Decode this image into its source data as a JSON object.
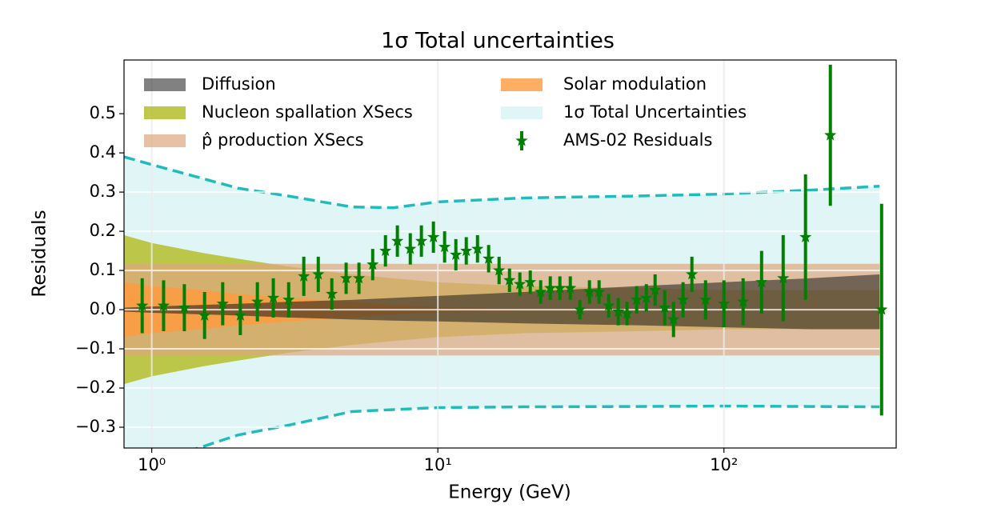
{
  "chart_data": {
    "type": "errorbar",
    "title": "1σ Total uncertainties",
    "xlabel": "Energy (GeV)",
    "ylabel": "Residuals",
    "xscale": "log",
    "xlim": [
      0.8,
      400
    ],
    "ylim": [
      -0.353,
      0.637
    ],
    "xticks": [
      {
        "value": 1,
        "label": "10⁰"
      },
      {
        "value": 10,
        "label": "10¹"
      },
      {
        "value": 100,
        "label": "10²"
      }
    ],
    "yticks": [
      {
        "value": -0.3,
        "label": "−0.3"
      },
      {
        "value": -0.2,
        "label": "−0.2"
      },
      {
        "value": -0.1,
        "label": "−0.1"
      },
      {
        "value": 0,
        "label": "0.0"
      },
      0.1,
      0.2,
      0.3,
      0.4,
      0.5
    ],
    "grid": true,
    "legend": "upper center",
    "bands": [
      {
        "name": "Diffusion",
        "color": "#1a1a1a",
        "x": [
          0.8,
          1,
          1.5,
          2,
          3,
          5,
          7,
          10,
          20,
          50,
          100,
          200,
          350
        ],
        "upper": [
          0.005,
          0.008,
          0.012,
          0.015,
          0.02,
          0.025,
          0.03,
          0.035,
          0.045,
          0.06,
          0.07,
          0.08,
          0.09
        ],
        "lower": [
          -0.005,
          -0.008,
          -0.012,
          -0.015,
          -0.02,
          -0.025,
          -0.028,
          -0.03,
          -0.035,
          -0.04,
          -0.045,
          -0.05,
          -0.05
        ]
      },
      {
        "name": "Nucleon spallation XSecs",
        "color": "#b5be2c",
        "x": [
          0.8,
          1,
          1.5,
          2,
          3,
          5,
          7,
          10,
          20,
          50,
          100,
          200,
          350
        ],
        "upper": [
          0.19,
          0.17,
          0.145,
          0.13,
          0.11,
          0.09,
          0.08,
          0.07,
          0.06,
          0.055,
          0.05,
          0.05,
          0.05
        ],
        "lower": [
          -0.19,
          -0.17,
          -0.145,
          -0.13,
          -0.11,
          -0.09,
          -0.08,
          -0.07,
          -0.06,
          -0.055,
          -0.05,
          -0.05,
          -0.05
        ]
      },
      {
        "name": "p̂ production XSecs",
        "color": "#dea77e",
        "x": [
          0.8,
          1,
          1.5,
          2,
          3,
          5,
          7,
          10,
          20,
          50,
          100,
          200,
          350
        ],
        "upper": [
          0.117,
          0.117,
          0.117,
          0.117,
          0.117,
          0.117,
          0.117,
          0.117,
          0.117,
          0.117,
          0.117,
          0.117,
          0.117
        ],
        "lower": [
          -0.117,
          -0.117,
          -0.117,
          -0.117,
          -0.117,
          -0.117,
          -0.117,
          -0.117,
          -0.117,
          -0.117,
          -0.117,
          -0.117,
          -0.117
        ]
      },
      {
        "name": "Solar modulation",
        "color": "#ff9a3c",
        "x": [
          0.8,
          1,
          1.5,
          2,
          3,
          5,
          7,
          10,
          20,
          50,
          100,
          200,
          350
        ],
        "upper": [
          0.07,
          0.06,
          0.05,
          0.04,
          0.03,
          0.02,
          0.012,
          0.007,
          0.003,
          0.002,
          0.001,
          0.001,
          0.001
        ],
        "lower": [
          -0.07,
          -0.06,
          -0.05,
          -0.04,
          -0.03,
          -0.02,
          -0.012,
          -0.007,
          -0.003,
          -0.002,
          -0.001,
          -0.001,
          -0.001
        ]
      },
      {
        "name": "1σ Total Uncertainties",
        "color": "#e0f6f6",
        "edge_color": "#20bcbc",
        "x": [
          0.8,
          1,
          1.5,
          2,
          3,
          5,
          7,
          10,
          20,
          50,
          100,
          200,
          350
        ],
        "upper": [
          0.39,
          0.37,
          0.335,
          0.31,
          0.29,
          0.262,
          0.26,
          0.275,
          0.285,
          0.29,
          0.295,
          0.305,
          0.315
        ],
        "lower": [
          -0.42,
          -0.39,
          -0.35,
          -0.32,
          -0.295,
          -0.26,
          -0.255,
          -0.25,
          -0.248,
          -0.247,
          -0.246,
          -0.247,
          -0.248
        ]
      }
    ],
    "series": [
      {
        "name": "AMS-02 Residuals",
        "color": "#008000",
        "x": [
          0.926,
          1.1,
          1.3,
          1.53,
          1.77,
          2.04,
          2.34,
          2.66,
          3.01,
          3.4,
          3.82,
          4.26,
          4.78,
          5.3,
          5.92,
          6.56,
          7.22,
          8.01,
          8.76,
          9.65,
          10.56,
          11.56,
          12.57,
          13.76,
          15.05,
          16.37,
          17.8,
          19.35,
          21.04,
          22.88,
          24.72,
          26.71,
          29.04,
          31.37,
          33.88,
          36.61,
          39.54,
          42.73,
          45.86,
          49.55,
          53.55,
          57.46,
          62.09,
          66.65,
          71.95,
          77.27,
          86.26,
          100,
          116.7,
          135.4,
          161.1,
          192.8,
          235.5,
          355.7
        ],
        "values": [
          0.01,
          0.01,
          0.005,
          -0.015,
          0.015,
          -0.015,
          0.02,
          0.03,
          0.025,
          0.085,
          0.09,
          0.04,
          0.08,
          0.08,
          0.115,
          0.15,
          0.175,
          0.155,
          0.175,
          0.185,
          0.16,
          0.14,
          0.15,
          0.155,
          0.13,
          0.1,
          0.075,
          0.065,
          0.07,
          0.045,
          0.055,
          0.055,
          0.055,
          0.0,
          0.045,
          0.045,
          0.01,
          -0.005,
          -0.01,
          0.025,
          0.03,
          0.05,
          0.005,
          -0.025,
          0.025,
          0.09,
          0.025,
          0.015,
          0.02,
          0.07,
          0.08,
          0.185,
          0.445,
          0.0
        ],
        "errors": [
          0.07,
          0.065,
          0.06,
          0.06,
          0.055,
          0.05,
          0.05,
          0.05,
          0.045,
          0.05,
          0.045,
          0.04,
          0.04,
          0.04,
          0.04,
          0.04,
          0.04,
          0.04,
          0.04,
          0.04,
          0.04,
          0.04,
          0.035,
          0.035,
          0.035,
          0.035,
          0.03,
          0.03,
          0.03,
          0.03,
          0.03,
          0.03,
          0.03,
          0.025,
          0.03,
          0.03,
          0.03,
          0.035,
          0.03,
          0.035,
          0.035,
          0.04,
          0.045,
          0.045,
          0.045,
          0.045,
          0.05,
          0.06,
          0.06,
          0.08,
          0.11,
          0.16,
          0.18,
          0.27
        ]
      }
    ]
  }
}
